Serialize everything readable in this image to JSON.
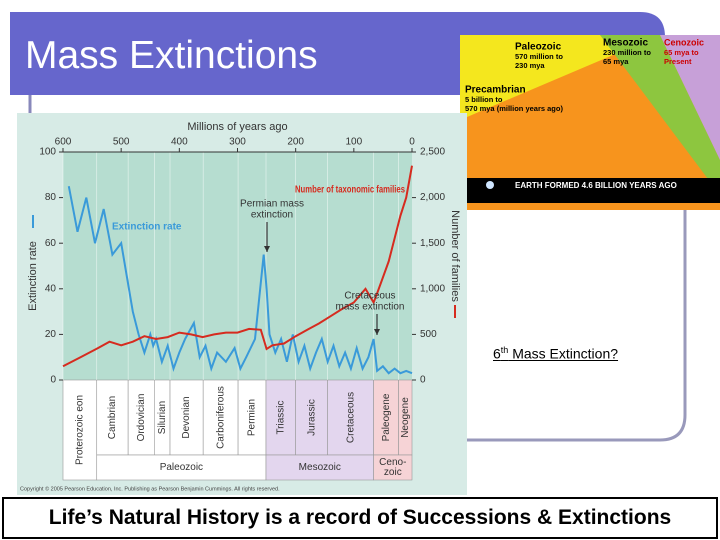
{
  "slide": {
    "title": "Mass Extinctions",
    "link": {
      "ordinal": "6",
      "suffix": "th",
      "text": " Mass Extinction?"
    },
    "footer": "Life’s Natural History is a record of Successions & Extinctions"
  },
  "inset": {
    "paleozoic": {
      "name": "Paleozoic",
      "lines": [
        "570 million to",
        "230 mya"
      ]
    },
    "mesozoic": {
      "name": "Mesozoic",
      "lines": [
        "230 million to",
        "65 mya"
      ]
    },
    "cenozoic": {
      "name": "Cenozoic",
      "lines": [
        "65 mya to",
        "Present"
      ]
    },
    "precambrian": {
      "name": "Precambrian",
      "lines": [
        "5 billion to",
        "570 mya (million years ago)"
      ]
    },
    "earth": "EARTH FORMED 4.6 BILLION YEARS AGO"
  },
  "chart_data": {
    "type": "line",
    "xlabel": "Millions of years ago",
    "ylabel": "Extinction rate",
    "y2label": "Number of families",
    "xlim": [
      600,
      0
    ],
    "xticks": [
      600,
      500,
      400,
      300,
      200,
      100,
      0
    ],
    "ylim": [
      0,
      100
    ],
    "yticks": [
      0,
      20,
      40,
      60,
      80,
      100
    ],
    "y2lim": [
      0,
      2500
    ],
    "y2ticks": [
      0,
      500,
      {
        "value": 1000,
        "label": "1,000"
      },
      {
        "value": 1500,
        "label": "1,500"
      },
      {
        "value": 2000,
        "label": "2,000"
      },
      {
        "value": 2500,
        "label": "2,500"
      }
    ],
    "series": [
      {
        "name": "Extinction rate",
        "color": "#3a9ad9",
        "x": [
          590,
          575,
          560,
          545,
          530,
          515,
          500,
          490,
          480,
          470,
          460,
          450,
          445,
          440,
          430,
          420,
          410,
          400,
          390,
          375,
          365,
          355,
          345,
          335,
          320,
          305,
          295,
          285,
          270,
          255,
          250,
          245,
          235,
          225,
          215,
          205,
          195,
          185,
          175,
          165,
          155,
          145,
          135,
          125,
          115,
          105,
          95,
          85,
          75,
          66,
          60,
          50,
          40,
          30,
          20,
          10,
          0
        ],
        "values": [
          85,
          65,
          80,
          60,
          75,
          55,
          60,
          45,
          30,
          20,
          12,
          20,
          15,
          18,
          8,
          15,
          5,
          12,
          18,
          25,
          10,
          15,
          5,
          12,
          8,
          14,
          5,
          10,
          18,
          55,
          40,
          20,
          12,
          18,
          8,
          20,
          8,
          15,
          5,
          12,
          18,
          8,
          15,
          6,
          12,
          5,
          14,
          5,
          10,
          18,
          4,
          6,
          3,
          5,
          3,
          4,
          3
        ]
      },
      {
        "name": "Number of taxonomic families",
        "color": "#d62b1f",
        "axis": "y2",
        "x": [
          600,
          570,
          540,
          520,
          500,
          480,
          460,
          440,
          420,
          400,
          380,
          360,
          340,
          320,
          300,
          280,
          260,
          250,
          240,
          220,
          200,
          180,
          160,
          140,
          120,
          100,
          80,
          66,
          60,
          40,
          20,
          10,
          0
        ],
        "values": [
          150,
          250,
          350,
          420,
          380,
          420,
          480,
          450,
          470,
          520,
          500,
          470,
          500,
          520,
          520,
          560,
          550,
          340,
          380,
          400,
          480,
          550,
          620,
          700,
          780,
          850,
          1000,
          850,
          950,
          1300,
          1800,
          2000,
          2350
        ]
      }
    ],
    "annotations": {
      "permian": [
        "Permian mass",
        "extinction"
      ],
      "cretaceous": [
        "Cretaceous",
        "mass extinction"
      ]
    },
    "periods": [
      {
        "name": "Proterozoic eon",
        "start": 600,
        "end": 542
      },
      {
        "name": "Cambrian",
        "start": 542,
        "end": 488
      },
      {
        "name": "Ordovician",
        "start": 488,
        "end": 443
      },
      {
        "name": "Silurian",
        "start": 443,
        "end": 416
      },
      {
        "name": "Devonian",
        "start": 416,
        "end": 359
      },
      {
        "name": "Carboniferous",
        "start": 359,
        "end": 299
      },
      {
        "name": "Permian",
        "start": 299,
        "end": 251
      },
      {
        "name": "Triassic",
        "start": 251,
        "end": 200
      },
      {
        "name": "Jurassic",
        "start": 200,
        "end": 145
      },
      {
        "name": "Cretaceous",
        "start": 145,
        "end": 66
      },
      {
        "name": "Paleogene",
        "start": 66,
        "end": 23
      },
      {
        "name": "Neogene",
        "start": 23,
        "end": 0
      }
    ],
    "eras": [
      {
        "lines": [
          "Paleozoic"
        ],
        "start": 542,
        "end": 251,
        "color": "#ffffff"
      },
      {
        "lines": [
          "Mesozoic"
        ],
        "start": 251,
        "end": 66,
        "color": "#e3d6ee"
      },
      {
        "lines": [
          "Ceno-",
          "zoic"
        ],
        "start": 66,
        "end": 0,
        "color": "#f6d3d6"
      }
    ],
    "copyright": "Copyright © 2005 Pearson Education, Inc. Publishing as Pearson Benjamin Cummings. All rights reserved."
  }
}
